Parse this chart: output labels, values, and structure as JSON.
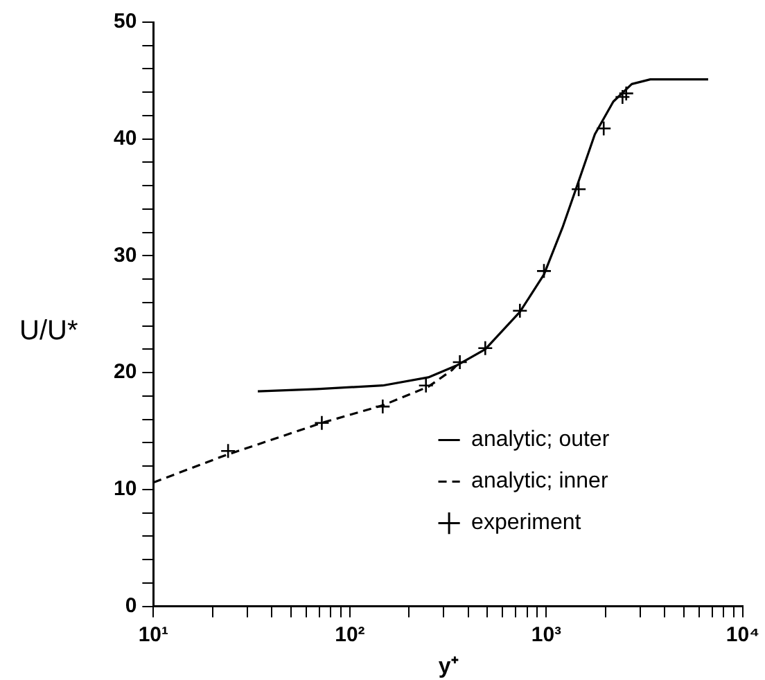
{
  "chart_data": {
    "type": "line",
    "xlabel": "y⁺",
    "ylabel": "U/U*",
    "log": "x",
    "legend": "bottom right",
    "xlim": [
      10,
      10000
    ],
    "ylim": [
      0,
      50
    ],
    "xticks": [
      {
        "value": 10,
        "label": "10¹"
      },
      {
        "value": 20,
        "label": null
      },
      {
        "value": 30,
        "label": null
      },
      {
        "value": 40,
        "label": null
      },
      {
        "value": 50,
        "label": null
      },
      {
        "value": 60,
        "label": null
      },
      {
        "value": 70,
        "label": null
      },
      {
        "value": 80,
        "label": null
      },
      {
        "value": 90,
        "label": null
      },
      {
        "value": 100,
        "label": "10²"
      },
      {
        "value": 200,
        "label": null
      },
      {
        "value": 300,
        "label": null
      },
      {
        "value": 400,
        "label": null
      },
      {
        "value": 500,
        "label": null
      },
      {
        "value": 600,
        "label": null
      },
      {
        "value": 700,
        "label": null
      },
      {
        "value": 800,
        "label": null
      },
      {
        "value": 900,
        "label": null
      },
      {
        "value": 1000,
        "label": "10³"
      },
      {
        "value": 2000,
        "label": null
      },
      {
        "value": 3000,
        "label": null
      },
      {
        "value": 4000,
        "label": null
      },
      {
        "value": 5000,
        "label": null
      },
      {
        "value": 6000,
        "label": null
      },
      {
        "value": 7000,
        "label": null
      },
      {
        "value": 8000,
        "label": null
      },
      {
        "value": 9000,
        "label": null
      },
      {
        "value": 10000,
        "label": "10⁴"
      }
    ],
    "yticks": [
      0,
      {
        "value": 2,
        "label": null
      },
      {
        "value": 4,
        "label": null
      },
      {
        "value": 6,
        "label": null
      },
      {
        "value": 8,
        "label": null
      },
      10,
      {
        "value": 12,
        "label": null
      },
      {
        "value": 14,
        "label": null
      },
      {
        "value": 16,
        "label": null
      },
      {
        "value": 18,
        "label": null
      },
      20,
      {
        "value": 22,
        "label": null
      },
      {
        "value": 24,
        "label": null
      },
      {
        "value": 26,
        "label": null
      },
      {
        "value": 28,
        "label": null
      },
      30,
      {
        "value": 32,
        "label": null
      },
      {
        "value": 34,
        "label": null
      },
      {
        "value": 36,
        "label": null
      },
      {
        "value": 38,
        "label": null
      },
      40,
      {
        "value": 42,
        "label": null
      },
      {
        "value": 44,
        "label": null
      },
      {
        "value": 46,
        "label": null
      },
      {
        "value": 48,
        "label": null
      },
      50
    ],
    "series": [
      {
        "name": "analytic; outer",
        "type": "line",
        "color": "#000000",
        "line_style": "solid",
        "marker": "none",
        "x": [
          34,
          68,
          147,
          251,
          348,
          489,
          734,
          973,
          1208,
          1462,
          1766,
          2193,
          2723,
          3383,
          6668
        ],
        "values": [
          18.4,
          18.6,
          18.9,
          19.6,
          20.6,
          22,
          25.2,
          28.4,
          32.4,
          36.4,
          40.4,
          43.2,
          44.7,
          45.1,
          45.1
        ]
      },
      {
        "name": "analytic; inner",
        "type": "line",
        "color": "#000000",
        "line_style": "dashed",
        "marker": "none",
        "x": [
          10,
          23,
          72,
          147,
          251,
          330,
          348
        ],
        "values": [
          10.6,
          12.9,
          15.7,
          17.2,
          18.8,
          20.2,
          20.6
        ]
      },
      {
        "name": "experiment",
        "type": "scatter",
        "color": "#000000",
        "marker": "cross",
        "x": [
          24,
          72,
          147,
          244,
          363,
          489,
          734,
          973,
          1462,
          1960,
          2443,
          2552
        ],
        "values": [
          13.3,
          15.7,
          17.1,
          18.9,
          20.9,
          22.1,
          25.3,
          28.7,
          35.7,
          40.9,
          43.6,
          43.9
        ]
      }
    ]
  }
}
